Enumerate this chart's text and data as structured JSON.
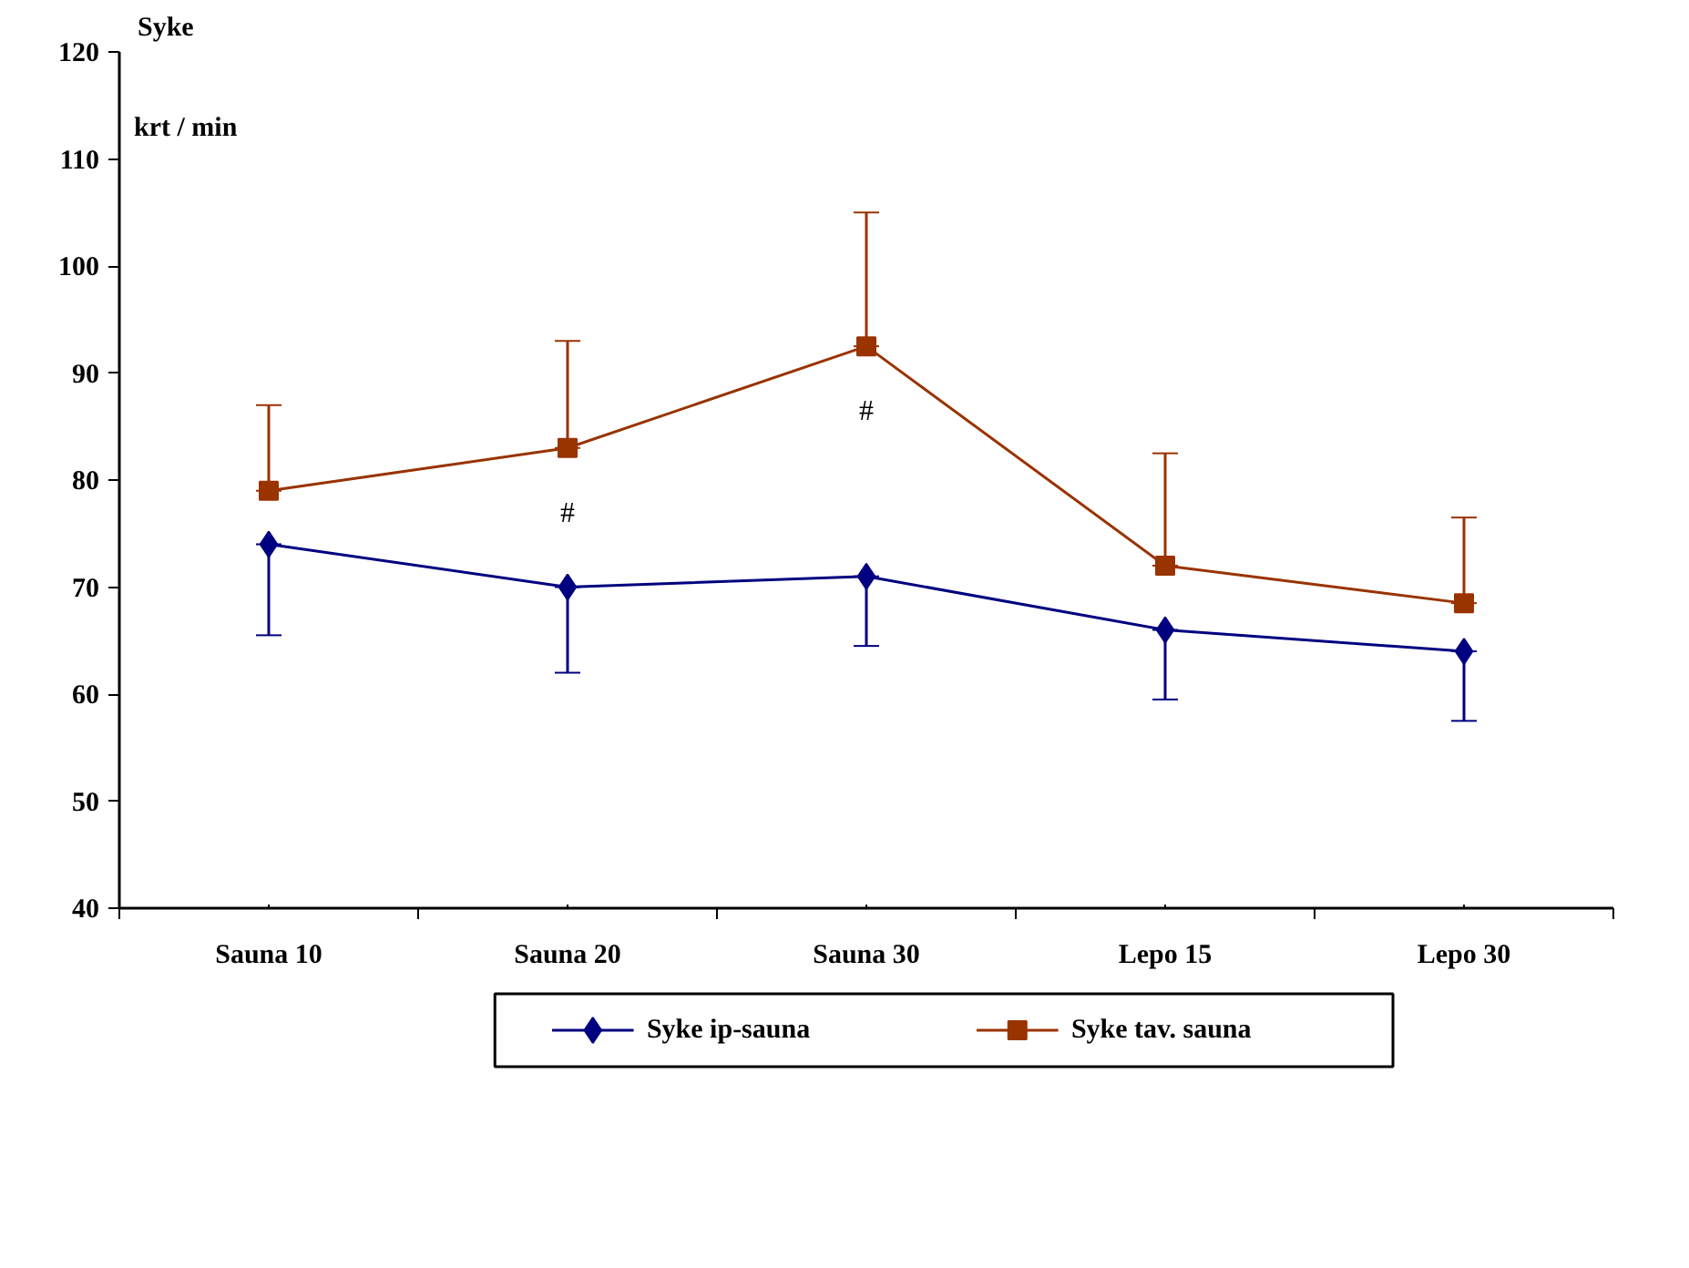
{
  "chart_data": {
    "type": "line",
    "ylabel": "Syke",
    "categories": [
      "Sauna 10",
      "Sauna 20",
      "Sauna 30",
      "Lepo 15",
      "Lepo 30"
    ],
    "series": [
      {
        "name": "Syke ip-sauna",
        "color": "#000080",
        "marker": "diamond",
        "values": [
          74,
          70,
          71,
          66,
          64
        ],
        "errors": [
          [
            65.5,
            74
          ],
          [
            62,
            70
          ],
          [
            64.5,
            71
          ],
          [
            59.5,
            66
          ],
          [
            57.5,
            64
          ]
        ]
      },
      {
        "name": "Syke tav. sauna",
        "color": "#993300",
        "marker": "square",
        "values": [
          79,
          83,
          92.5,
          72,
          68.5
        ],
        "errors": [
          [
            79,
            87
          ],
          [
            83,
            93
          ],
          [
            92.5,
            105
          ],
          [
            72,
            82.5
          ],
          [
            68.5,
            76.5
          ]
        ]
      }
    ],
    "ylim": [
      40,
      120
    ],
    "yticks": [
      40,
      50,
      60,
      70,
      80,
      90,
      100,
      110,
      120
    ],
    "annotations": [
      "krt / min",
      "#",
      "#"
    ],
    "grid": false,
    "legend": "bottom",
    "line_style": "solid"
  }
}
